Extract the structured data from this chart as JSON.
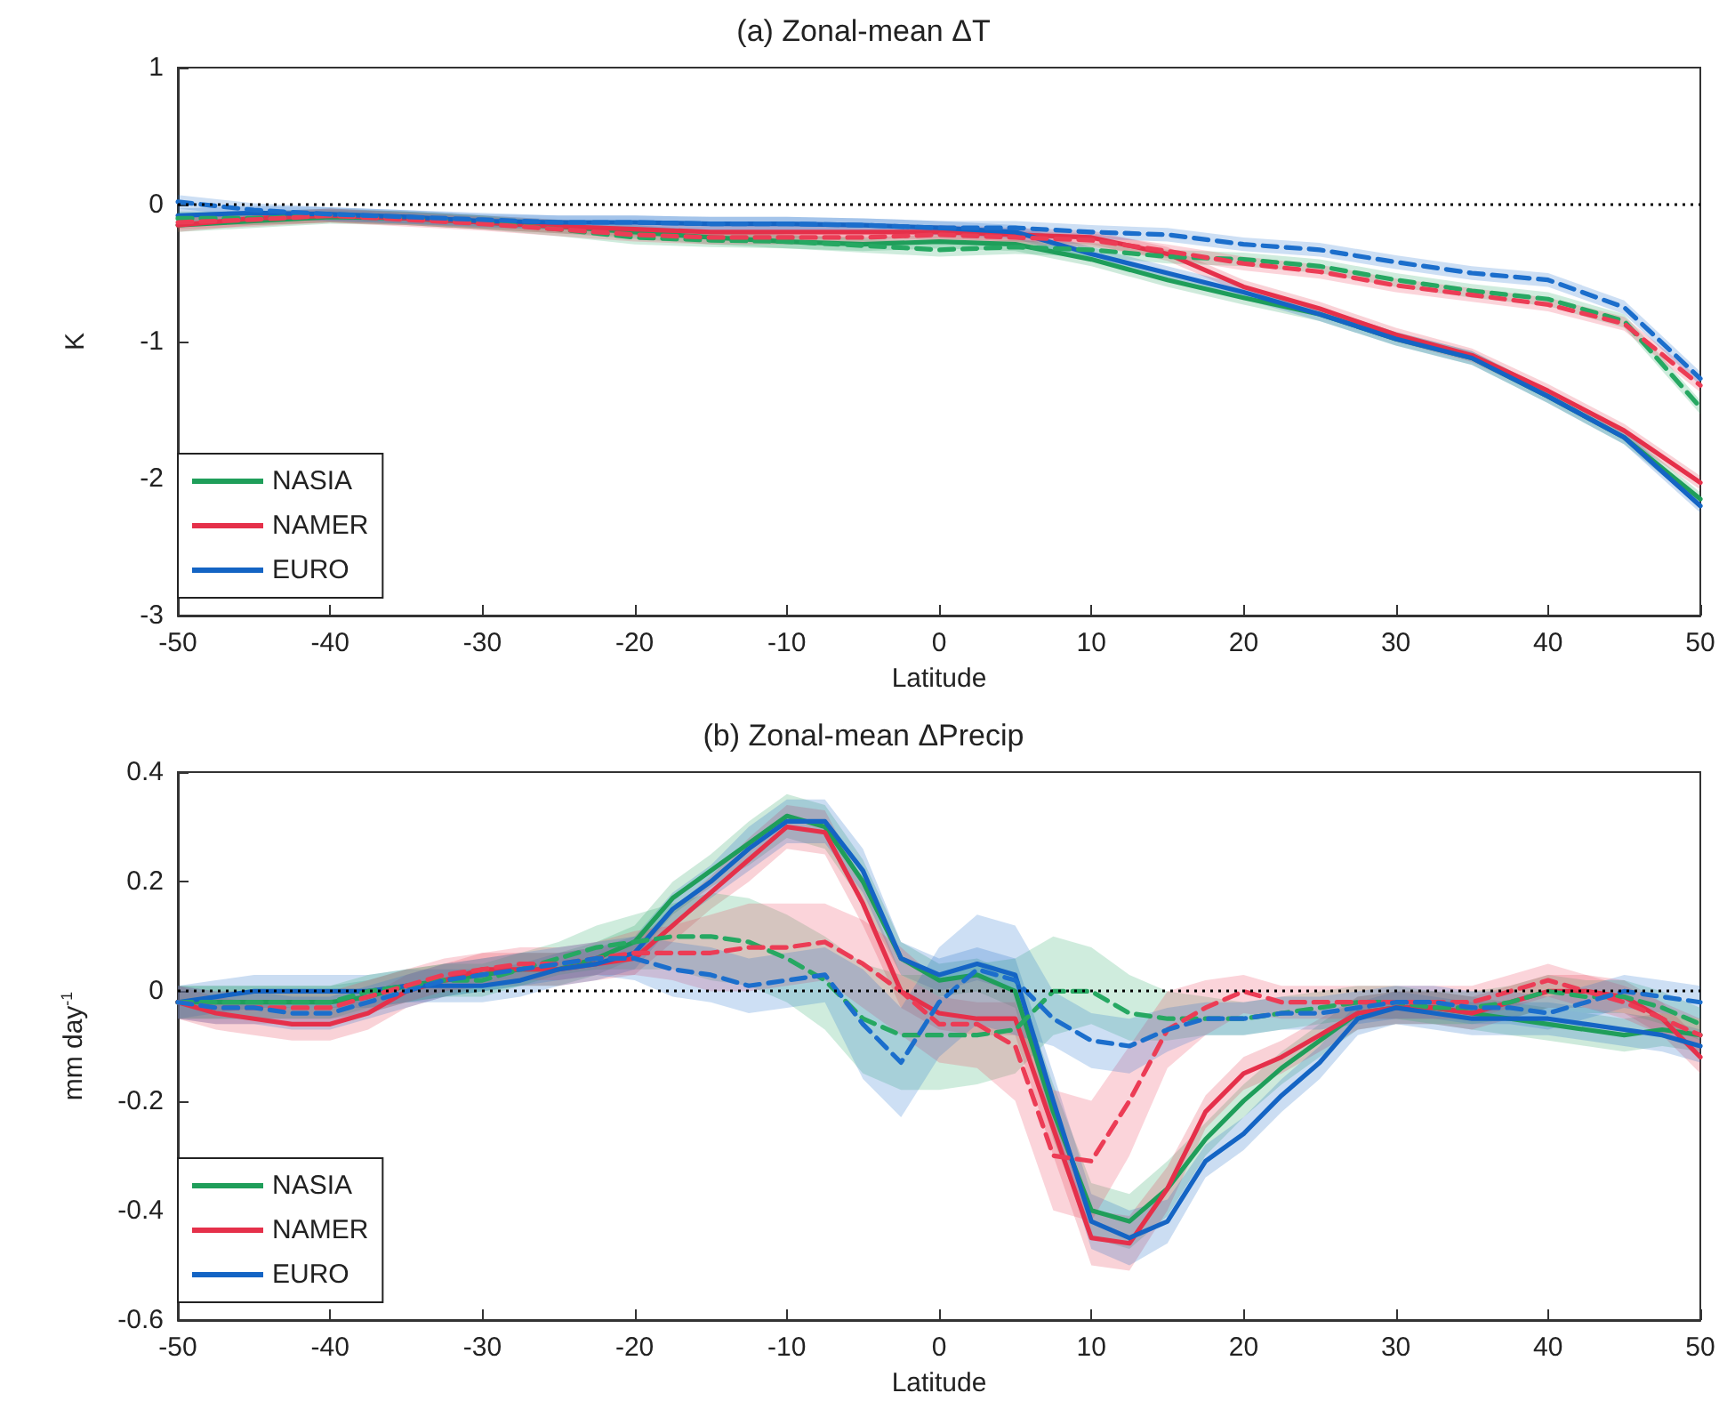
{
  "chart_data": [
    {
      "type": "line",
      "title": "(a) Zonal-mean ΔT",
      "xlabel": "Latitude",
      "ylabel": "K",
      "xlim": [
        -50,
        50
      ],
      "xticks": [
        -50,
        -40,
        -30,
        -20,
        -10,
        0,
        10,
        20,
        30,
        40,
        50
      ],
      "ylim": [
        -3,
        1
      ],
      "yticks": [
        -3,
        -2,
        -1,
        0,
        1
      ],
      "legend": "bottom left",
      "grid": false,
      "ref_lines": [
        {
          "axis": "y",
          "value": 0,
          "line_style": "dotted",
          "color": "#000000"
        }
      ],
      "x": [
        -50,
        -45,
        -40,
        -35,
        -30,
        -25,
        -20,
        -15,
        -10,
        -5,
        0,
        5,
        10,
        15,
        20,
        25,
        30,
        35,
        40,
        45,
        50
      ],
      "series": [
        {
          "name": "NASIA",
          "color": "#1f9e5a",
          "line_style": "solid",
          "values": [
            -0.15,
            -0.12,
            -0.09,
            -0.1,
            -0.13,
            -0.16,
            -0.2,
            -0.24,
            -0.27,
            -0.29,
            -0.27,
            -0.29,
            -0.4,
            -0.55,
            -0.68,
            -0.8,
            -0.98,
            -1.12,
            -1.4,
            -1.7,
            -2.15
          ],
          "lower": [
            -0.2,
            -0.17,
            -0.14,
            -0.15,
            -0.18,
            -0.21,
            -0.25,
            -0.29,
            -0.32,
            -0.34,
            -0.32,
            -0.34,
            -0.45,
            -0.6,
            -0.73,
            -0.85,
            -1.03,
            -1.17,
            -1.45,
            -1.75,
            -2.2
          ],
          "upper": [
            -0.1,
            -0.07,
            -0.04,
            -0.05,
            -0.08,
            -0.11,
            -0.15,
            -0.19,
            -0.22,
            -0.24,
            -0.22,
            -0.24,
            -0.35,
            -0.5,
            -0.63,
            -0.75,
            -0.93,
            -1.07,
            -1.35,
            -1.65,
            -2.1
          ]
        },
        {
          "name": "NAMER",
          "color": "#e5304a",
          "line_style": "solid",
          "values": [
            -0.15,
            -0.1,
            -0.08,
            -0.1,
            -0.13,
            -0.16,
            -0.18,
            -0.2,
            -0.2,
            -0.2,
            -0.2,
            -0.22,
            -0.24,
            -0.36,
            -0.6,
            -0.76,
            -0.95,
            -1.1,
            -1.36,
            -1.65,
            -2.03
          ],
          "lower": [
            -0.2,
            -0.15,
            -0.13,
            -0.15,
            -0.18,
            -0.21,
            -0.23,
            -0.25,
            -0.25,
            -0.25,
            -0.25,
            -0.27,
            -0.29,
            -0.41,
            -0.65,
            -0.81,
            -1,
            -1.15,
            -1.41,
            -1.7,
            -2.08
          ],
          "upper": [
            -0.1,
            -0.05,
            -0.03,
            -0.05,
            -0.08,
            -0.11,
            -0.13,
            -0.15,
            -0.15,
            -0.15,
            -0.15,
            -0.17,
            -0.19,
            -0.31,
            -0.55,
            -0.71,
            -0.9,
            -1.05,
            -1.31,
            -1.6,
            -1.98
          ]
        },
        {
          "name": "EURO",
          "color": "#1464c4",
          "line_style": "solid",
          "values": [
            -0.08,
            -0.06,
            -0.07,
            -0.09,
            -0.12,
            -0.13,
            -0.13,
            -0.14,
            -0.14,
            -0.15,
            -0.17,
            -0.2,
            -0.36,
            -0.5,
            -0.64,
            -0.8,
            -0.98,
            -1.12,
            -1.4,
            -1.7,
            -2.2
          ],
          "lower": [
            -0.13,
            -0.11,
            -0.12,
            -0.14,
            -0.17,
            -0.18,
            -0.18,
            -0.19,
            -0.19,
            -0.2,
            -0.22,
            -0.25,
            -0.41,
            -0.55,
            -0.69,
            -0.85,
            -1.03,
            -1.17,
            -1.45,
            -1.75,
            -2.25
          ],
          "upper": [
            -0.03,
            -0.01,
            -0.02,
            -0.04,
            -0.07,
            -0.08,
            -0.08,
            -0.09,
            -0.09,
            -0.1,
            -0.12,
            -0.15,
            -0.31,
            -0.45,
            -0.59,
            -0.75,
            -0.93,
            -1.07,
            -1.35,
            -1.65,
            -2.15
          ]
        },
        {
          "color": "#26a862",
          "line_style": "dashed",
          "values": [
            -0.1,
            -0.1,
            -0.08,
            -0.1,
            -0.13,
            -0.18,
            -0.24,
            -0.26,
            -0.27,
            -0.3,
            -0.33,
            -0.31,
            -0.33,
            -0.38,
            -0.4,
            -0.45,
            -0.55,
            -0.63,
            -0.69,
            -0.85,
            -1.48
          ],
          "lower": [
            -0.15,
            -0.15,
            -0.13,
            -0.15,
            -0.18,
            -0.23,
            -0.29,
            -0.31,
            -0.32,
            -0.35,
            -0.38,
            -0.36,
            -0.38,
            -0.43,
            -0.45,
            -0.5,
            -0.6,
            -0.68,
            -0.74,
            -0.9,
            -1.53
          ],
          "upper": [
            -0.05,
            -0.05,
            -0.03,
            -0.05,
            -0.08,
            -0.13,
            -0.19,
            -0.21,
            -0.22,
            -0.25,
            -0.28,
            -0.26,
            -0.28,
            -0.33,
            -0.35,
            -0.4,
            -0.5,
            -0.58,
            -0.64,
            -0.8,
            -1.43
          ]
        },
        {
          "color": "#ec3c55",
          "line_style": "dashed",
          "values": [
            -0.13,
            -0.11,
            -0.08,
            -0.11,
            -0.14,
            -0.18,
            -0.22,
            -0.24,
            -0.24,
            -0.24,
            -0.22,
            -0.24,
            -0.26,
            -0.34,
            -0.43,
            -0.49,
            -0.59,
            -0.66,
            -0.73,
            -0.87,
            -1.32
          ],
          "lower": [
            -0.18,
            -0.16,
            -0.13,
            -0.16,
            -0.19,
            -0.23,
            -0.27,
            -0.29,
            -0.29,
            -0.29,
            -0.27,
            -0.29,
            -0.31,
            -0.39,
            -0.48,
            -0.54,
            -0.64,
            -0.71,
            -0.78,
            -0.92,
            -1.37
          ],
          "upper": [
            -0.08,
            -0.06,
            -0.03,
            -0.06,
            -0.09,
            -0.13,
            -0.17,
            -0.19,
            -0.19,
            -0.19,
            -0.17,
            -0.19,
            -0.21,
            -0.29,
            -0.38,
            -0.44,
            -0.54,
            -0.61,
            -0.68,
            -0.82,
            -1.27
          ]
        },
        {
          "color": "#1b6ecc",
          "line_style": "dashed",
          "values": [
            0.02,
            -0.04,
            -0.07,
            -0.09,
            -0.11,
            -0.13,
            -0.13,
            -0.14,
            -0.14,
            -0.15,
            -0.17,
            -0.17,
            -0.2,
            -0.22,
            -0.29,
            -0.33,
            -0.42,
            -0.5,
            -0.55,
            -0.75,
            -1.27
          ],
          "lower": [
            -0.03,
            -0.09,
            -0.12,
            -0.14,
            -0.16,
            -0.18,
            -0.18,
            -0.19,
            -0.19,
            -0.2,
            -0.22,
            -0.22,
            -0.25,
            -0.27,
            -0.34,
            -0.38,
            -0.47,
            -0.55,
            -0.6,
            -0.8,
            -1.32
          ],
          "upper": [
            0.07,
            0.01,
            -0.02,
            -0.04,
            -0.06,
            -0.08,
            -0.08,
            -0.09,
            -0.09,
            -0.1,
            -0.12,
            -0.12,
            -0.15,
            -0.17,
            -0.24,
            -0.28,
            -0.37,
            -0.45,
            -0.5,
            -0.7,
            -1.22
          ]
        }
      ]
    },
    {
      "type": "line",
      "title": "(b) Zonal-mean ΔPrecip",
      "xlabel": "Latitude",
      "ylabel": "mm day$^{-1}$",
      "xlim": [
        -50,
        50
      ],
      "xticks": [
        -50,
        -40,
        -30,
        -20,
        -10,
        0,
        10,
        20,
        30,
        40,
        50
      ],
      "ylim": [
        -0.6,
        0.4
      ],
      "yticks": [
        -0.6,
        -0.4,
        -0.2,
        0,
        0.2,
        0.4
      ],
      "legend": "bottom left",
      "grid": false,
      "ref_lines": [
        {
          "axis": "y",
          "value": 0,
          "line_style": "dotted",
          "color": "#000000"
        }
      ],
      "x": [
        -50,
        -47.5,
        -45,
        -42.5,
        -40,
        -37.5,
        -35,
        -32.5,
        -30,
        -27.5,
        -25,
        -22.5,
        -20,
        -17.5,
        -15,
        -12.5,
        -10,
        -7.5,
        -5,
        -2.5,
        0,
        2.5,
        5,
        7.5,
        10,
        12.5,
        15,
        17.5,
        20,
        22.5,
        25,
        27.5,
        30,
        32.5,
        35,
        37.5,
        40,
        42.5,
        45,
        47.5,
        50
      ],
      "series": [
        {
          "name": "NASIA",
          "color": "#1f9e5a",
          "line_style": "solid",
          "values": [
            -0.02,
            -0.02,
            -0.02,
            -0.02,
            -0.02,
            -0.01,
            0.01,
            0.02,
            0.03,
            0.04,
            0.04,
            0.06,
            0.09,
            0.17,
            0.22,
            0.27,
            0.32,
            0.3,
            0.2,
            0.06,
            0.02,
            0.03,
            0,
            -0.22,
            -0.4,
            -0.42,
            -0.36,
            -0.27,
            -0.2,
            -0.14,
            -0.09,
            -0.04,
            -0.03,
            -0.03,
            -0.04,
            -0.05,
            -0.06,
            -0.07,
            -0.08,
            -0.07,
            -0.08
          ],
          "lower": [
            -0.05,
            -0.05,
            -0.05,
            -0.05,
            -0.05,
            -0.04,
            -0.02,
            -0.01,
            0,
            0.01,
            0.01,
            0.03,
            0.06,
            0.14,
            0.19,
            0.23,
            0.28,
            0.26,
            0.16,
            0.03,
            -0.01,
            0,
            -0.03,
            -0.27,
            -0.45,
            -0.47,
            -0.41,
            -0.3,
            -0.23,
            -0.17,
            -0.12,
            -0.07,
            -0.06,
            -0.06,
            -0.07,
            -0.08,
            -0.09,
            -0.1,
            -0.11,
            -0.1,
            -0.11
          ],
          "upper": [
            0.01,
            0.01,
            0.01,
            0.01,
            0.01,
            0.02,
            0.04,
            0.05,
            0.06,
            0.07,
            0.07,
            0.09,
            0.12,
            0.2,
            0.25,
            0.31,
            0.36,
            0.34,
            0.24,
            0.09,
            0.05,
            0.06,
            0.03,
            -0.17,
            -0.35,
            -0.37,
            -0.31,
            -0.24,
            -0.17,
            -0.11,
            -0.06,
            -0.01,
            0,
            0,
            -0.01,
            -0.02,
            -0.03,
            -0.04,
            -0.05,
            -0.04,
            -0.05
          ]
        },
        {
          "name": "NAMER",
          "color": "#e5304a",
          "line_style": "solid",
          "values": [
            -0.02,
            -0.04,
            -0.05,
            -0.06,
            -0.06,
            -0.04,
            0,
            0.02,
            0.04,
            0.04,
            0.04,
            0.05,
            0.06,
            0.12,
            0.18,
            0.24,
            0.3,
            0.29,
            0.16,
            0,
            -0.04,
            -0.05,
            -0.05,
            -0.25,
            -0.45,
            -0.46,
            -0.36,
            -0.22,
            -0.15,
            -0.12,
            -0.08,
            -0.04,
            -0.03,
            -0.03,
            -0.04,
            -0.02,
            0,
            0,
            -0.01,
            -0.05,
            -0.12
          ],
          "lower": [
            -0.05,
            -0.07,
            -0.08,
            -0.09,
            -0.09,
            -0.07,
            -0.03,
            -0.01,
            0.01,
            0.01,
            0.01,
            0.02,
            0.03,
            0.09,
            0.15,
            0.2,
            0.26,
            0.25,
            0.12,
            -0.03,
            -0.07,
            -0.08,
            -0.08,
            -0.3,
            -0.5,
            -0.51,
            -0.4,
            -0.25,
            -0.18,
            -0.15,
            -0.11,
            -0.07,
            -0.06,
            -0.06,
            -0.07,
            -0.05,
            -0.03,
            -0.03,
            -0.04,
            -0.08,
            -0.15
          ],
          "upper": [
            0.01,
            -0.01,
            -0.02,
            -0.03,
            -0.03,
            -0.01,
            0.03,
            0.05,
            0.07,
            0.07,
            0.07,
            0.08,
            0.09,
            0.15,
            0.21,
            0.28,
            0.34,
            0.33,
            0.2,
            0.03,
            -0.01,
            -0.02,
            -0.02,
            -0.2,
            -0.4,
            -0.41,
            -0.32,
            -0.19,
            -0.12,
            -0.09,
            -0.05,
            -0.01,
            0,
            0,
            -0.01,
            0.01,
            0.03,
            0.03,
            0.02,
            -0.02,
            -0.09
          ]
        },
        {
          "name": "EURO",
          "color": "#1464c4",
          "line_style": "solid",
          "values": [
            -0.02,
            -0.01,
            0,
            0,
            0,
            0,
            0.01,
            0.01,
            0.01,
            0.02,
            0.04,
            0.05,
            0.07,
            0.15,
            0.2,
            0.26,
            0.31,
            0.31,
            0.22,
            0.06,
            0.03,
            0.05,
            0.03,
            -0.2,
            -0.42,
            -0.45,
            -0.42,
            -0.31,
            -0.26,
            -0.19,
            -0.13,
            -0.05,
            -0.03,
            -0.04,
            -0.05,
            -0.05,
            -0.05,
            -0.06,
            -0.07,
            -0.08,
            -0.1
          ],
          "lower": [
            -0.05,
            -0.04,
            -0.03,
            -0.03,
            -0.03,
            -0.03,
            -0.02,
            -0.02,
            -0.02,
            -0.01,
            0.01,
            0.02,
            0.04,
            0.12,
            0.17,
            0.22,
            0.27,
            0.27,
            0.18,
            0.03,
            0,
            0.02,
            0,
            -0.25,
            -0.47,
            -0.5,
            -0.46,
            -0.34,
            -0.29,
            -0.22,
            -0.16,
            -0.08,
            -0.06,
            -0.07,
            -0.08,
            -0.08,
            -0.08,
            -0.09,
            -0.1,
            -0.11,
            -0.13
          ],
          "upper": [
            0.01,
            0.02,
            0.03,
            0.03,
            0.03,
            0.03,
            0.04,
            0.04,
            0.04,
            0.05,
            0.07,
            0.08,
            0.1,
            0.18,
            0.23,
            0.3,
            0.35,
            0.35,
            0.26,
            0.09,
            0.06,
            0.08,
            0.06,
            -0.15,
            -0.37,
            -0.4,
            -0.38,
            -0.28,
            -0.23,
            -0.16,
            -0.1,
            -0.02,
            0,
            -0.01,
            -0.02,
            -0.02,
            -0.02,
            -0.03,
            -0.04,
            -0.05,
            -0.07
          ]
        },
        {
          "color": "#26a862",
          "line_style": "dashed",
          "values": [
            -0.02,
            -0.02,
            -0.02,
            -0.02,
            -0.02,
            0,
            0.01,
            0.02,
            0.02,
            0.04,
            0.06,
            0.08,
            0.09,
            0.1,
            0.1,
            0.09,
            0.06,
            0.02,
            -0.05,
            -0.08,
            -0.08,
            -0.08,
            -0.07,
            0,
            0,
            -0.04,
            -0.05,
            -0.05,
            -0.05,
            -0.04,
            -0.03,
            -0.02,
            -0.02,
            -0.03,
            -0.03,
            -0.02,
            0,
            -0.01,
            -0.01,
            -0.03,
            -0.06
          ],
          "lower": [
            -0.05,
            -0.05,
            -0.05,
            -0.05,
            -0.05,
            -0.03,
            -0.02,
            -0.01,
            -0.01,
            0.01,
            0.03,
            0.04,
            0.04,
            0.04,
            0.02,
            0.01,
            -0.02,
            -0.07,
            -0.15,
            -0.18,
            -0.18,
            -0.17,
            -0.15,
            -0.08,
            -0.06,
            -0.09,
            -0.09,
            -0.08,
            -0.08,
            -0.07,
            -0.06,
            -0.05,
            -0.05,
            -0.06,
            -0.06,
            -0.05,
            -0.03,
            -0.04,
            -0.04,
            -0.06,
            -0.09
          ],
          "upper": [
            0.01,
            0.01,
            0.01,
            0.01,
            0.01,
            0.03,
            0.04,
            0.05,
            0.05,
            0.07,
            0.09,
            0.12,
            0.14,
            0.16,
            0.18,
            0.17,
            0.14,
            0.1,
            0.05,
            0.03,
            0.03,
            0.05,
            0.06,
            0.1,
            0.08,
            0.03,
            0,
            -0.01,
            -0.02,
            -0.01,
            0,
            0.01,
            0.01,
            0,
            0,
            0.01,
            0.03,
            0.02,
            0.02,
            0,
            -0.03
          ]
        },
        {
          "color": "#ec3c55",
          "line_style": "dashed",
          "values": [
            -0.02,
            -0.03,
            -0.03,
            -0.03,
            -0.03,
            -0.01,
            0.01,
            0.03,
            0.04,
            0.05,
            0.05,
            0.06,
            0.07,
            0.07,
            0.07,
            0.08,
            0.08,
            0.09,
            0.05,
            0,
            -0.06,
            -0.06,
            -0.1,
            -0.3,
            -0.31,
            -0.2,
            -0.07,
            -0.03,
            0,
            -0.02,
            -0.02,
            -0.02,
            -0.02,
            -0.02,
            -0.02,
            0,
            0.02,
            0,
            -0.02,
            -0.05,
            -0.08
          ],
          "lower": [
            -0.05,
            -0.06,
            -0.06,
            -0.06,
            -0.06,
            -0.04,
            -0.02,
            0,
            0.01,
            0.02,
            0.02,
            0.03,
            0.03,
            0.02,
            0,
            0,
            0.01,
            0.02,
            -0.03,
            -0.08,
            -0.13,
            -0.14,
            -0.2,
            -0.4,
            -0.42,
            -0.3,
            -0.14,
            -0.08,
            -0.04,
            -0.05,
            -0.05,
            -0.05,
            -0.05,
            -0.05,
            -0.05,
            -0.03,
            -0.01,
            -0.03,
            -0.05,
            -0.08,
            -0.11
          ],
          "upper": [
            0.01,
            0,
            0,
            0,
            0,
            0.02,
            0.04,
            0.06,
            0.07,
            0.08,
            0.08,
            0.09,
            0.11,
            0.12,
            0.14,
            0.16,
            0.16,
            0.16,
            0.13,
            0.08,
            0.02,
            0.03,
            0,
            -0.18,
            -0.2,
            -0.1,
            0,
            0.02,
            0.03,
            0.01,
            0.01,
            0.01,
            0.01,
            0.01,
            0.01,
            0.03,
            0.05,
            0.03,
            0.01,
            -0.02,
            -0.05
          ]
        },
        {
          "color": "#1b6ecc",
          "line_style": "dashed",
          "values": [
            -0.02,
            -0.03,
            -0.03,
            -0.04,
            -0.04,
            -0.02,
            0,
            0.02,
            0.03,
            0.04,
            0.05,
            0.06,
            0.06,
            0.04,
            0.03,
            0.01,
            0.02,
            0.03,
            -0.06,
            -0.13,
            -0.02,
            0.04,
            0.02,
            -0.05,
            -0.09,
            -0.1,
            -0.07,
            -0.05,
            -0.05,
            -0.04,
            -0.04,
            -0.03,
            -0.02,
            -0.02,
            -0.03,
            -0.03,
            -0.04,
            -0.02,
            0,
            -0.01,
            -0.02
          ],
          "lower": [
            -0.05,
            -0.06,
            -0.06,
            -0.07,
            -0.07,
            -0.05,
            -0.03,
            -0.01,
            0,
            0.01,
            0.02,
            0.03,
            0.02,
            -0.01,
            -0.02,
            -0.04,
            -0.03,
            -0.02,
            -0.16,
            -0.23,
            -0.12,
            -0.06,
            -0.08,
            -0.1,
            -0.14,
            -0.15,
            -0.11,
            -0.08,
            -0.08,
            -0.07,
            -0.07,
            -0.06,
            -0.05,
            -0.05,
            -0.06,
            -0.06,
            -0.07,
            -0.05,
            -0.03,
            -0.04,
            -0.05
          ],
          "upper": [
            0.01,
            0,
            0,
            -0.01,
            -0.01,
            0.01,
            0.03,
            0.05,
            0.06,
            0.07,
            0.08,
            0.09,
            0.1,
            0.09,
            0.08,
            0.06,
            0.07,
            0.08,
            0.04,
            -0.03,
            0.08,
            0.14,
            0.12,
            0,
            -0.04,
            -0.05,
            -0.03,
            -0.02,
            -0.02,
            -0.01,
            -0.01,
            0,
            0.01,
            0.01,
            0,
            0,
            -0.01,
            0.01,
            0.03,
            0.02,
            0.01
          ]
        }
      ]
    }
  ]
}
